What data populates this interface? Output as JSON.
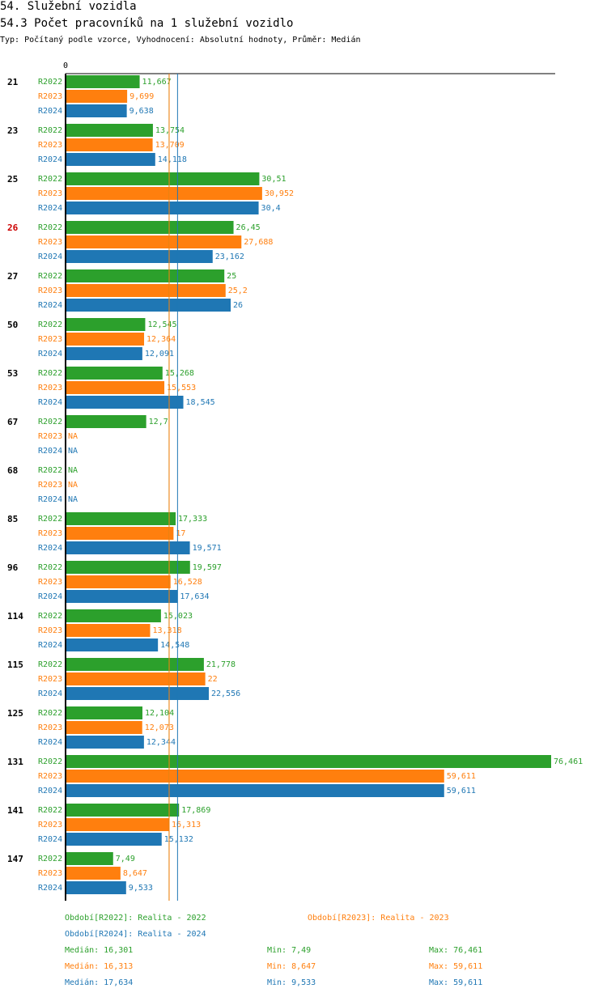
{
  "header": {
    "title": "54. Služební vozidla",
    "subtitle": "54.3 Počet pracovníků na 1 služební vozidlo",
    "type_line": "Typ: Počítaný podle vzorce, Vyhodnocení: Absolutní hodnoty, Průměr: Medián"
  },
  "colors": {
    "R2022": "#2ca02c",
    "R2023": "#ff7f0e",
    "R2024": "#1f77b4",
    "highlight": "#cc0000"
  },
  "chart_data": {
    "type": "bar",
    "orientation": "horizontal",
    "axis_zero_label": "0",
    "xlim": [
      0,
      76.461
    ],
    "series_names": [
      "R2022",
      "R2023",
      "R2024"
    ],
    "groups": [
      {
        "label": "21",
        "highlight": false,
        "values": [
          11.667,
          9.699,
          9.638
        ],
        "labels": [
          "11,667",
          "9,699",
          "9,638"
        ]
      },
      {
        "label": "23",
        "highlight": false,
        "values": [
          13.754,
          13.709,
          14.118
        ],
        "labels": [
          "13,754",
          "13,709",
          "14,118"
        ]
      },
      {
        "label": "25",
        "highlight": false,
        "values": [
          30.51,
          30.952,
          30.4
        ],
        "labels": [
          "30,51",
          "30,952",
          "30,4"
        ]
      },
      {
        "label": "26",
        "highlight": true,
        "values": [
          26.45,
          27.688,
          23.162
        ],
        "labels": [
          "26,45",
          "27,688",
          "23,162"
        ]
      },
      {
        "label": "27",
        "highlight": false,
        "values": [
          25,
          25.2,
          26
        ],
        "labels": [
          "25",
          "25,2",
          "26"
        ]
      },
      {
        "label": "50",
        "highlight": false,
        "values": [
          12.545,
          12.364,
          12.091
        ],
        "labels": [
          "12,545",
          "12,364",
          "12,091"
        ]
      },
      {
        "label": "53",
        "highlight": false,
        "values": [
          15.268,
          15.553,
          18.545
        ],
        "labels": [
          "15,268",
          "15,553",
          "18,545"
        ]
      },
      {
        "label": "67",
        "highlight": false,
        "values": [
          12.7,
          null,
          null
        ],
        "labels": [
          "12,7",
          "NA",
          "NA"
        ]
      },
      {
        "label": "68",
        "highlight": false,
        "values": [
          null,
          null,
          null
        ],
        "labels": [
          "NA",
          "NA",
          "NA"
        ]
      },
      {
        "label": "85",
        "highlight": false,
        "values": [
          17.333,
          17,
          19.571
        ],
        "labels": [
          "17,333",
          "17",
          "19,571"
        ]
      },
      {
        "label": "96",
        "highlight": false,
        "values": [
          19.597,
          16.528,
          17.634
        ],
        "labels": [
          "19,597",
          "16,528",
          "17,634"
        ]
      },
      {
        "label": "114",
        "highlight": false,
        "values": [
          15.023,
          13.318,
          14.548
        ],
        "labels": [
          "15,023",
          "13,318",
          "14,548"
        ]
      },
      {
        "label": "115",
        "highlight": false,
        "values": [
          21.778,
          22,
          22.556
        ],
        "labels": [
          "21,778",
          "22",
          "22,556"
        ]
      },
      {
        "label": "125",
        "highlight": false,
        "values": [
          12.104,
          12.073,
          12.344
        ],
        "labels": [
          "12,104",
          "12,073",
          "12,344"
        ]
      },
      {
        "label": "131",
        "highlight": false,
        "values": [
          76.461,
          59.611,
          59.611
        ],
        "labels": [
          "76,461",
          "59,611",
          "59,611"
        ]
      },
      {
        "label": "141",
        "highlight": false,
        "values": [
          17.869,
          16.313,
          15.132
        ],
        "labels": [
          "17,869",
          "16,313",
          "15,132"
        ]
      },
      {
        "label": "147",
        "highlight": false,
        "values": [
          7.49,
          8.647,
          9.533
        ],
        "labels": [
          "7,49",
          "8,647",
          "9,533"
        ]
      }
    ],
    "median_lines": [
      16.301,
      16.313,
      17.634
    ]
  },
  "legend": {
    "r2022": "Období[R2022]: Realita - 2022",
    "r2023": "Období[R2023]: Realita - 2023",
    "r2024": "Období[R2024]: Realita - 2024"
  },
  "stats": [
    {
      "median": "Medián: 16,301",
      "min": "Min: 7,49",
      "max": "Max: 76,461"
    },
    {
      "median": "Medián: 16,313",
      "min": "Min: 8,647",
      "max": "Max: 59,611"
    },
    {
      "median": "Medián: 17,634",
      "min": "Min: 9,533",
      "max": "Max: 59,611"
    }
  ]
}
